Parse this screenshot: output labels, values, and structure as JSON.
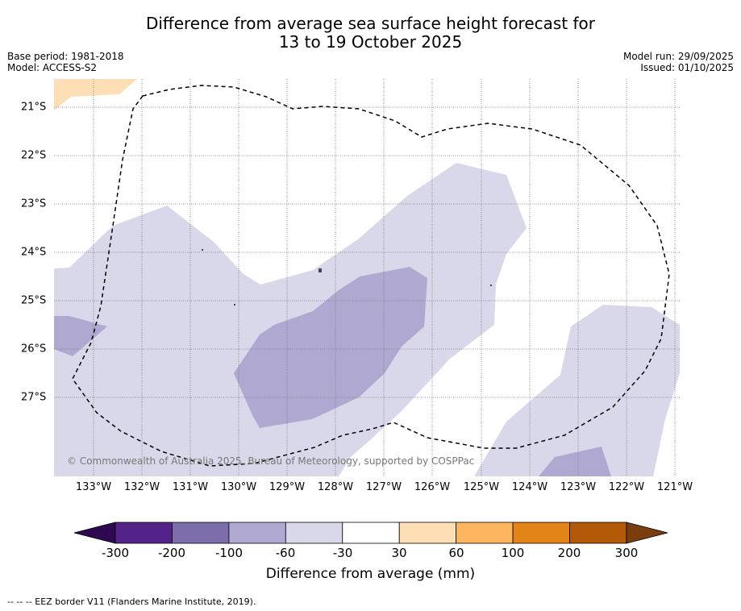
{
  "title_line1": "Difference from average sea surface height forecast for",
  "title_line2": "13 to 19 October 2025",
  "base_period": "Base period: 1981-2018",
  "model": "Model: ACCESS-S2",
  "model_run": "Model run: 29/09/2025",
  "issued": "Issued: 01/10/2025",
  "longitude_labels": [
    "133°W",
    "132°W",
    "131°W",
    "130°W",
    "129°W",
    "128°W",
    "127°W",
    "126°W",
    "125°W",
    "124°W",
    "123°W",
    "122°W",
    "121°W"
  ],
  "latitude_labels": [
    "21°S",
    "22°S",
    "23°S",
    "24°S",
    "25°S",
    "26°S",
    "27°S"
  ],
  "copyright": "© Commonwealth of Australia 2025, Bureau of Meteorology, supported by COSPPac",
  "colorbar": {
    "tick_labels": [
      "-300",
      "-200",
      "-100",
      "-60",
      "-30",
      "30",
      "60",
      "100",
      "200",
      "300"
    ],
    "colors": [
      "#54238a",
      "#7d6eab",
      "#afa8d0",
      "#d9d8ea",
      "#ffffff",
      "#fedfb5",
      "#fbb65f",
      "#e38418",
      "#b25a07"
    ],
    "under_color": "#2e0850",
    "over_color": "#7b3d0e",
    "label": "Difference from average (mm)"
  },
  "footnote": "--  --  -- EEZ border V11 (Flanders Marine Institute, 2019)."
}
